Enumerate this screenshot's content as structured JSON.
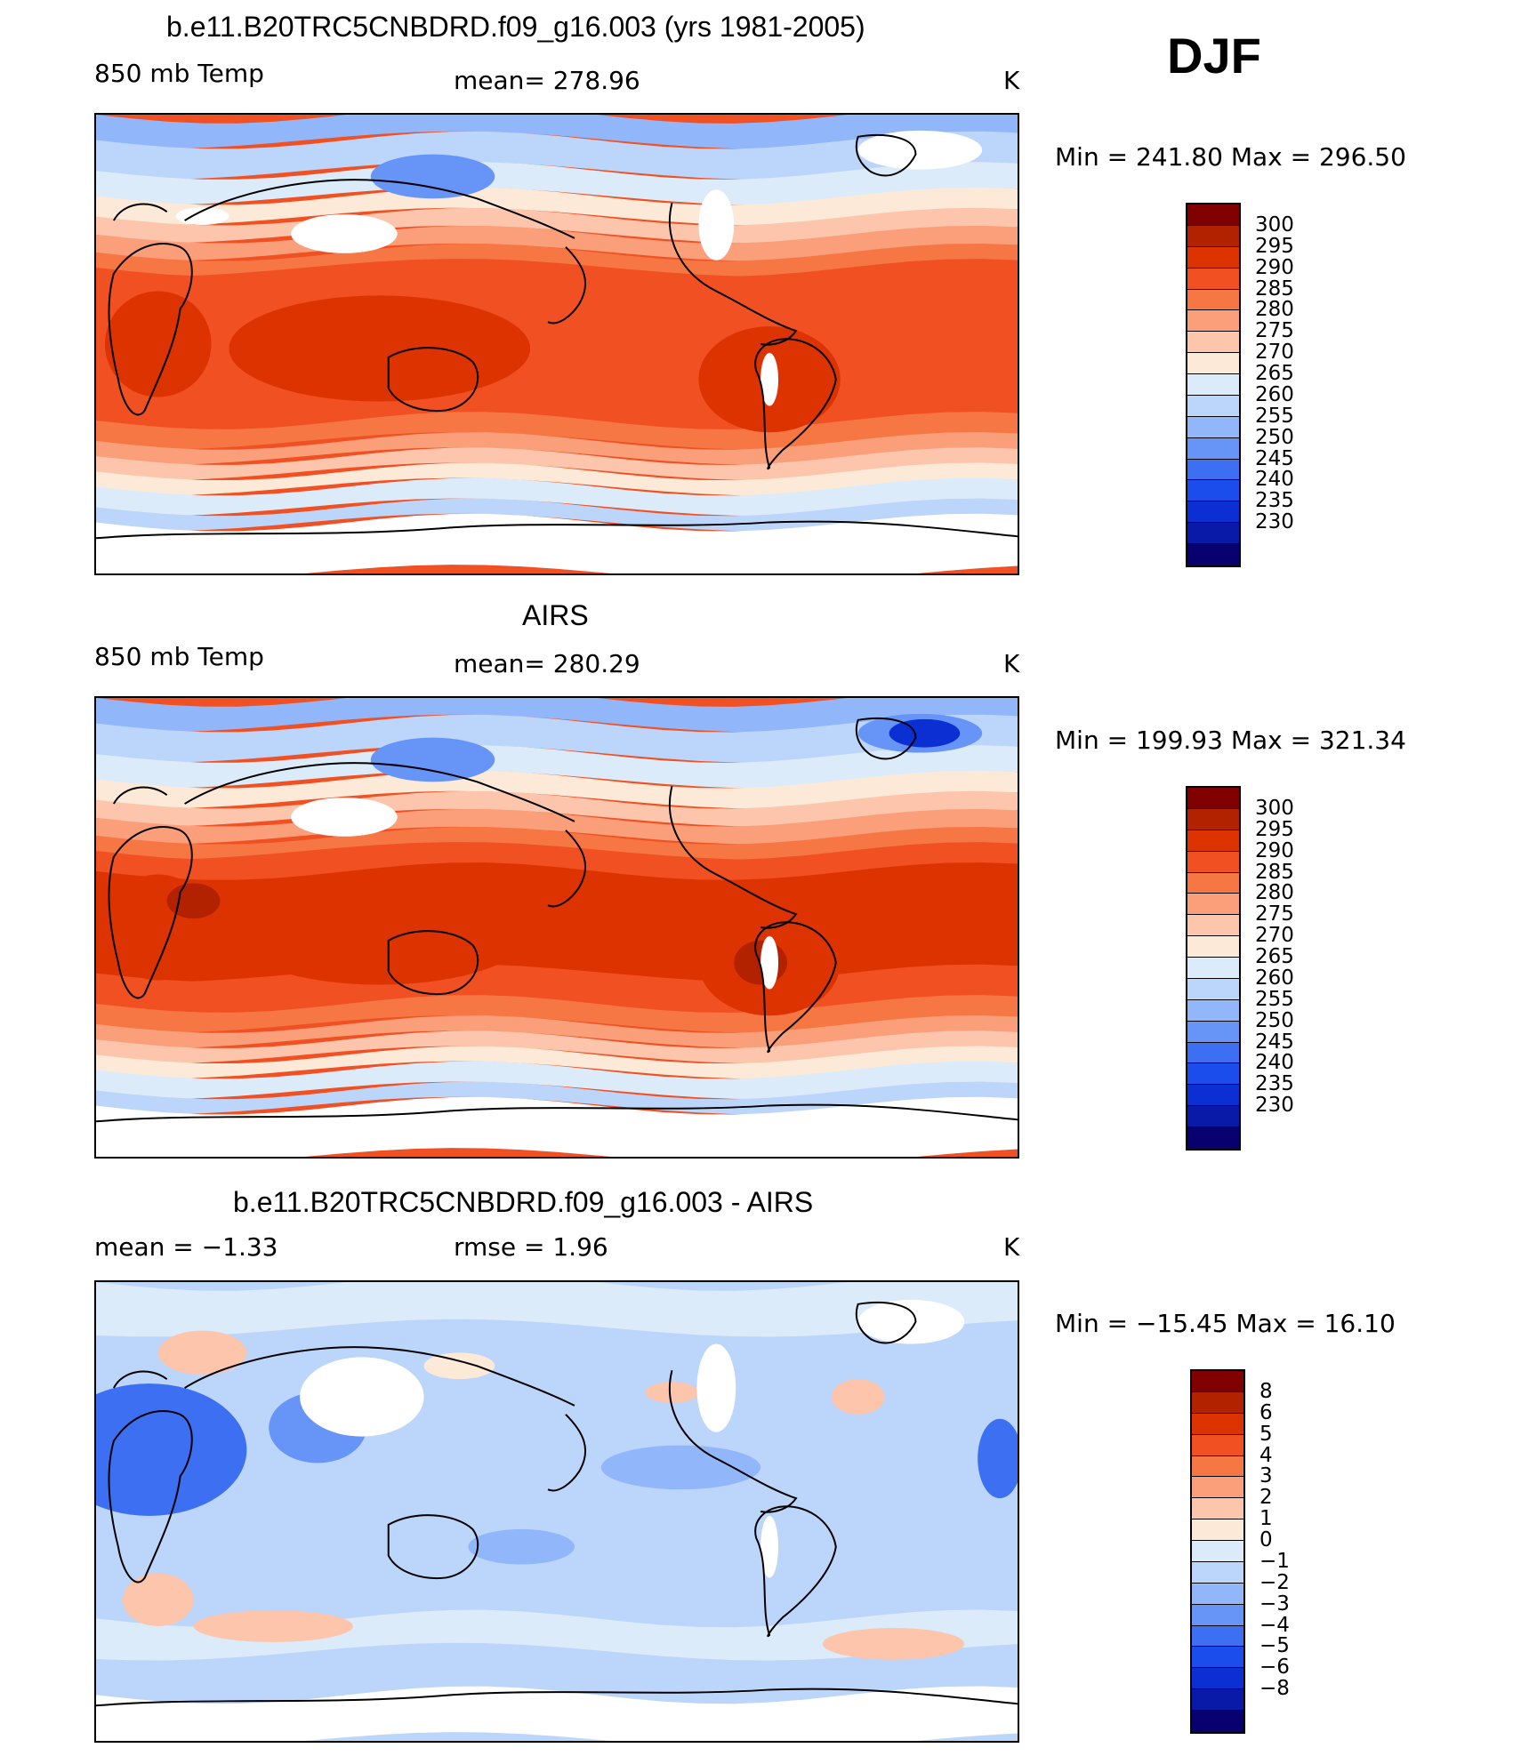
{
  "season": "DJF",
  "panels": [
    {
      "title": "b.e11.B20TRC5CNBDRD.f09_g16.003 (yrs 1981-2005)",
      "left_label": "850 mb Temp",
      "center_label": "mean= 278.96",
      "unit": "K",
      "minmax": "Min = 241.80 Max = 296.50",
      "field": "model"
    },
    {
      "title": "AIRS",
      "left_label": "850 mb Temp",
      "center_label": "mean= 280.29",
      "unit": "K",
      "minmax": "Min = 199.93 Max = 321.34",
      "field": "obs"
    },
    {
      "title": "b.e11.B20TRC5CNBDRD.f09_g16.003 - AIRS",
      "left_label": "mean = −1.33",
      "center_label": "rmse = 1.96",
      "unit": "K",
      "minmax": "Min = −15.45 Max = 16.10",
      "field": "diff"
    }
  ],
  "colorbars": {
    "temperature": {
      "colors": [
        "#800000",
        "#b22200",
        "#dd3300",
        "#f05022",
        "#f77744",
        "#fb9e7a",
        "#fcc5ac",
        "#fde9d8",
        "#dcebfa",
        "#bcd5fb",
        "#92b6fa",
        "#6694f7",
        "#3d6ff2",
        "#1b4ded",
        "#0b2fd3",
        "#0919a8",
        "#08006e"
      ],
      "labels": [
        "300",
        "295",
        "290",
        "285",
        "280",
        "275",
        "270",
        "265",
        "260",
        "255",
        "250",
        "245",
        "240",
        "235",
        "230"
      ]
    },
    "difference": {
      "colors": [
        "#800000",
        "#b22200",
        "#dd3300",
        "#f05022",
        "#f77744",
        "#fb9e7a",
        "#fcc5ac",
        "#fde9d8",
        "#dcebfa",
        "#bcd5fb",
        "#92b6fa",
        "#6694f7",
        "#3d6ff2",
        "#1b4ded",
        "#0b2fd3",
        "#0919a8",
        "#08006e"
      ],
      "labels": [
        "8",
        "6",
        "5",
        "4",
        "3",
        "2",
        "1",
        "0",
        "−1",
        "−2",
        "−3",
        "−4",
        "−5",
        "−6",
        "−8"
      ]
    }
  }
}
